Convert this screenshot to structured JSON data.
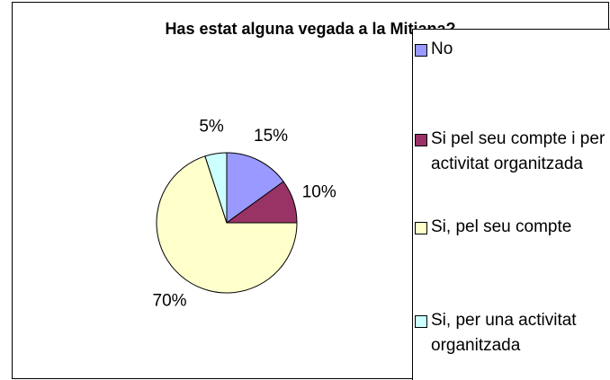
{
  "chart_data": {
    "type": "pie",
    "title": "Has estat alguna vegada a la Mitjana?",
    "categories": [
      "No",
      "Si pel seu compte i per activitat organitzada",
      "Si, pel seu compte",
      "Si, per una activitat organitzada"
    ],
    "values": [
      15,
      10,
      70,
      5
    ],
    "value_labels": [
      "15%",
      "10%",
      "70%",
      "5%"
    ],
    "colors": [
      "#9999ff",
      "#993366",
      "#ffffcc",
      "#ccffff"
    ],
    "legend": "right"
  }
}
